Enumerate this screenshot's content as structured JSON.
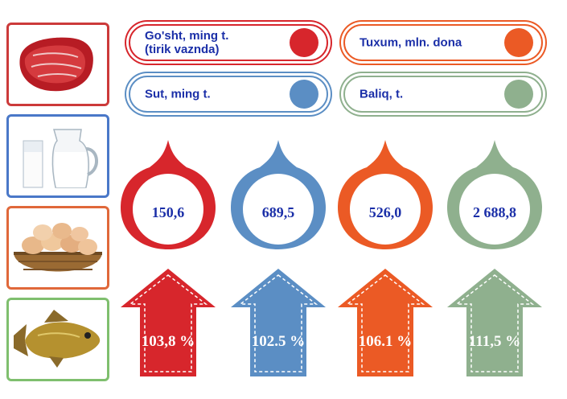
{
  "legend": [
    {
      "label": "Go'sht, ming t.\n(tirik vaznda)",
      "color": "#d7262c"
    },
    {
      "label": "Tuxum, mln. dona",
      "color": "#eb5a25"
    },
    {
      "label": "Sut, ming t.",
      "color": "#5b8ec4"
    },
    {
      "label": "Baliq, t.",
      "color": "#8fb08e"
    }
  ],
  "photos": [
    {
      "icon": "meat-image",
      "border": "#cc3a3a"
    },
    {
      "icon": "milk-image",
      "border": "#4a78c8"
    },
    {
      "icon": "eggs-image",
      "border": "#e0683a"
    },
    {
      "icon": "fish-image",
      "border": "#7fbf6e"
    }
  ],
  "indicators": [
    {
      "value": "150,6",
      "growth": "103,8 %",
      "color": "#d7262c"
    },
    {
      "value": "689,5",
      "growth": "102.5 %",
      "color": "#5b8ec4"
    },
    {
      "value": "526,0",
      "growth": "106.1 %",
      "color": "#eb5a25"
    },
    {
      "value": "2 688,8",
      "growth": "111,5 %",
      "color": "#8fb08e"
    }
  ]
}
